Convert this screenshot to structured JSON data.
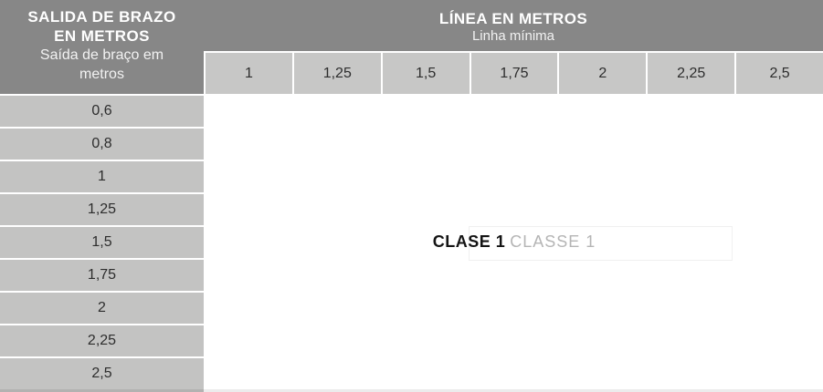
{
  "corner": {
    "title": "SALIDA DE BRAZO EN METROS",
    "subtitle": "Saída de braço em metros"
  },
  "top_header": {
    "title": "LÍNEA EN METROS",
    "subtitle": "Linha mínima"
  },
  "columns": [
    "1",
    "1,25",
    "1,5",
    "1,75",
    "2",
    "2,25",
    "2,5"
  ],
  "rows": [
    "0,6",
    "0,8",
    "1",
    "1,25",
    "1,5",
    "1,75",
    "2",
    "2,25",
    "2,5"
  ],
  "body": {
    "class_label_primary": "CLASE 1",
    "class_label_secondary": "CLASSE 1"
  },
  "colors": {
    "header_dark": "#878787",
    "column_header_cell": "#c7c7c6",
    "row_label_cell": "#c3c3c2",
    "separator": "#ffffff",
    "cell_text": "#2d2d2d",
    "class_primary_text": "#141414",
    "class_secondary_text": "#b5b5b5"
  }
}
